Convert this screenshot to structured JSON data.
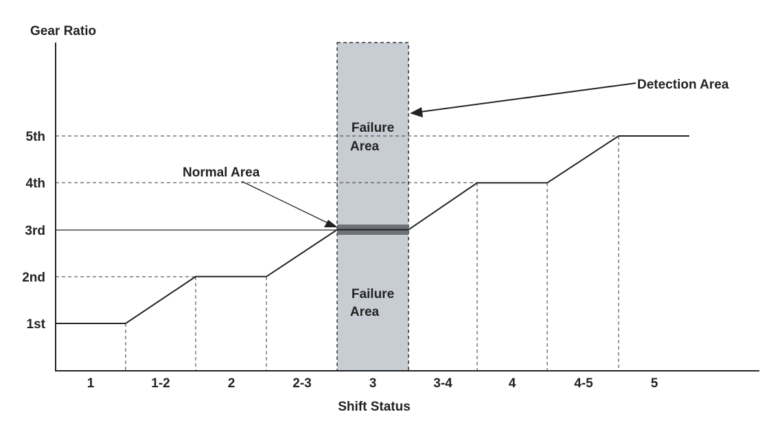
{
  "axis_title_y": "Gear Ratio",
  "axis_title_x": "Shift Status",
  "y_levels": [
    "1st",
    "2nd",
    "3rd",
    "4th",
    "5th"
  ],
  "x_stages": [
    "1",
    "1-2",
    "2",
    "2-3",
    "3",
    "3-4",
    "4",
    "4-5",
    "5"
  ],
  "curve_gear_levels": [
    1,
    1,
    2,
    2,
    3,
    3,
    4,
    4,
    5,
    5
  ],
  "highlighted_stage": "3",
  "highlighted_gear": "3rd",
  "annotations": {
    "detection": "Detection Area",
    "normal": "Normal Area",
    "failure_upper": [
      "Failure",
      "Area"
    ],
    "failure_lower": [
      "Failure",
      "Area"
    ]
  },
  "colors": {
    "line": "#222222",
    "detection_fill": "#c8ccd3",
    "normal_band": "#6e7278",
    "guide": "#333333"
  }
}
